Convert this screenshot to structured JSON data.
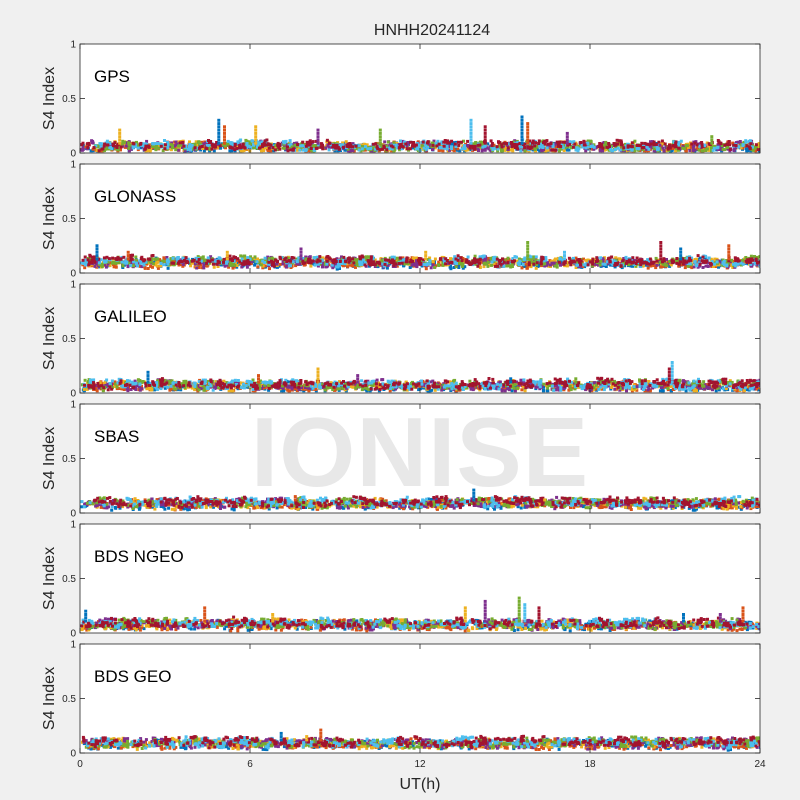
{
  "chart_data": {
    "type": "scatter",
    "title": "HNHH20241124",
    "xlabel": "UT(h)",
    "ylabel": "S4 Index",
    "xlim": [
      0,
      24
    ],
    "ylim": [
      0,
      1
    ],
    "xticks": [
      "0",
      "6",
      "12",
      "18",
      "24"
    ],
    "yticks": [
      "0",
      "0.5",
      "1"
    ],
    "grid": false,
    "series_colors": [
      "#0072BD",
      "#D95319",
      "#EDB120",
      "#7E2F8E",
      "#77AC30",
      "#4DBEEE",
      "#A2142F"
    ],
    "panels": [
      {
        "label": "GPS",
        "baseline": 0.06,
        "spikes": [
          {
            "x": 4.9,
            "y": 0.33
          },
          {
            "x": 5.1,
            "y": 0.25
          },
          {
            "x": 6.2,
            "y": 0.26
          },
          {
            "x": 8.4,
            "y": 0.24
          },
          {
            "x": 10.6,
            "y": 0.22
          },
          {
            "x": 13.8,
            "y": 0.31
          },
          {
            "x": 14.3,
            "y": 0.27
          },
          {
            "x": 15.6,
            "y": 0.36
          },
          {
            "x": 15.8,
            "y": 0.29
          },
          {
            "x": 1.4,
            "y": 0.23
          },
          {
            "x": 17.2,
            "y": 0.19
          },
          {
            "x": 22.3,
            "y": 0.16
          }
        ]
      },
      {
        "label": "GLONASS",
        "baseline": 0.1,
        "spikes": [
          {
            "x": 0.6,
            "y": 0.26
          },
          {
            "x": 1.7,
            "y": 0.22
          },
          {
            "x": 5.2,
            "y": 0.21
          },
          {
            "x": 7.8,
            "y": 0.24
          },
          {
            "x": 15.8,
            "y": 0.3
          },
          {
            "x": 17.1,
            "y": 0.22
          },
          {
            "x": 20.5,
            "y": 0.3
          },
          {
            "x": 21.2,
            "y": 0.25
          },
          {
            "x": 22.9,
            "y": 0.27
          },
          {
            "x": 12.2,
            "y": 0.22
          }
        ]
      },
      {
        "label": "GALILEO",
        "baseline": 0.07,
        "spikes": [
          {
            "x": 2.4,
            "y": 0.2
          },
          {
            "x": 6.3,
            "y": 0.19
          },
          {
            "x": 8.4,
            "y": 0.23
          },
          {
            "x": 9.8,
            "y": 0.17
          },
          {
            "x": 17.5,
            "y": 0.16
          },
          {
            "x": 20.9,
            "y": 0.3
          },
          {
            "x": 20.8,
            "y": 0.24
          },
          {
            "x": 15.2,
            "y": 0.15
          }
        ]
      },
      {
        "label": "SBAS",
        "baseline": 0.09,
        "spikes": [
          {
            "x": 13.9,
            "y": 0.24
          },
          {
            "x": 7.6,
            "y": 0.16
          },
          {
            "x": 16.4,
            "y": 0.15
          }
        ]
      },
      {
        "label": "BDS NGEO",
        "baseline": 0.08,
        "spikes": [
          {
            "x": 0.2,
            "y": 0.22
          },
          {
            "x": 4.4,
            "y": 0.26
          },
          {
            "x": 13.6,
            "y": 0.25
          },
          {
            "x": 14.3,
            "y": 0.3
          },
          {
            "x": 15.5,
            "y": 0.33
          },
          {
            "x": 15.7,
            "y": 0.28
          },
          {
            "x": 16.2,
            "y": 0.25
          },
          {
            "x": 21.3,
            "y": 0.2
          },
          {
            "x": 23.4,
            "y": 0.26
          },
          {
            "x": 6.8,
            "y": 0.19
          },
          {
            "x": 22.6,
            "y": 0.2
          }
        ]
      },
      {
        "label": "BDS GEO",
        "baseline": 0.09,
        "spikes": [
          {
            "x": 7.1,
            "y": 0.2
          },
          {
            "x": 8.5,
            "y": 0.22
          },
          {
            "x": 8.0,
            "y": 0.16
          }
        ]
      }
    ]
  },
  "watermark": "IONISE"
}
